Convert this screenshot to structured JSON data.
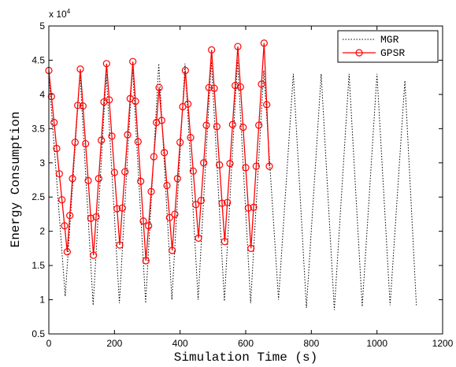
{
  "chart_data": {
    "type": "line",
    "xlabel": "Simulation Time (s)",
    "ylabel": "Energy Consumption",
    "multiplier": {
      "base": "x 10",
      "exponent": "4"
    },
    "xlim": [
      0,
      1200
    ],
    "xticks": [
      0,
      200,
      400,
      600,
      800,
      1000,
      1200
    ],
    "ylim": [
      0.5,
      5
    ],
    "yticks": [
      0.5,
      1,
      1.5,
      2,
      2.5,
      3,
      3.5,
      4,
      4.5,
      5
    ],
    "grid": false,
    "legend": "northeast",
    "series": [
      {
        "name": "MGR",
        "color": "#000000",
        "style": "dotted",
        "marker": "none",
        "x": [
          0,
          50,
          95,
          135,
          175,
          215,
          255,
          295,
          335,
          375,
          415,
          455,
          495,
          535,
          575,
          615,
          655,
          700,
          745,
          785,
          830,
          870,
          915,
          955,
          1000,
          1040,
          1085,
          1120
        ],
        "values": [
          4.3,
          1.05,
          4.3,
          0.92,
          4.3,
          0.95,
          4.4,
          0.95,
          4.45,
          1.0,
          4.45,
          1.0,
          4.5,
          0.98,
          4.5,
          0.95,
          4.35,
          1.0,
          4.3,
          0.88,
          4.3,
          0.85,
          4.3,
          0.9,
          4.3,
          0.92,
          4.2,
          0.92
        ]
      },
      {
        "name": "GPSR",
        "color": "#ff0000",
        "style": "solid",
        "marker": "circle",
        "x": [
          0,
          8,
          16,
          24,
          32,
          40,
          48,
          56,
          64,
          72,
          80,
          88,
          96,
          104,
          112,
          120,
          128,
          136,
          144,
          152,
          160,
          168,
          176,
          184,
          192,
          200,
          208,
          216,
          224,
          232,
          240,
          248,
          256,
          264,
          272,
          280,
          288,
          296,
          304,
          312,
          320,
          328,
          336,
          344,
          352,
          360,
          368,
          376,
          384,
          392,
          400,
          408,
          416,
          424,
          432,
          440,
          448,
          456,
          464,
          472,
          480,
          488,
          496,
          504,
          512,
          520,
          528,
          536,
          544,
          552,
          560,
          568,
          576,
          584,
          592,
          600,
          608,
          616,
          624,
          632,
          640,
          648,
          656,
          664,
          672
        ],
        "values": [
          4.35,
          3.97,
          3.59,
          3.21,
          2.84,
          2.46,
          2.08,
          1.7,
          2.23,
          2.77,
          3.3,
          3.84,
          4.37,
          3.83,
          3.28,
          2.74,
          2.19,
          1.65,
          2.21,
          2.77,
          3.33,
          3.89,
          4.45,
          3.92,
          3.39,
          2.86,
          2.33,
          1.8,
          2.34,
          2.87,
          3.41,
          3.94,
          4.48,
          3.9,
          3.31,
          2.73,
          2.15,
          1.57,
          2.08,
          2.58,
          3.09,
          3.59,
          4.1,
          3.62,
          3.15,
          2.67,
          2.2,
          1.72,
          2.25,
          2.77,
          3.3,
          3.82,
          4.35,
          3.86,
          3.37,
          2.88,
          2.39,
          1.9,
          2.45,
          3.0,
          3.55,
          4.1,
          4.65,
          4.09,
          3.53,
          2.97,
          2.41,
          1.85,
          2.42,
          2.99,
          3.56,
          4.13,
          4.7,
          4.11,
          3.52,
          2.93,
          2.34,
          1.75,
          2.35,
          2.95,
          3.55,
          4.15,
          4.75,
          3.85,
          2.95
        ]
      }
    ]
  }
}
